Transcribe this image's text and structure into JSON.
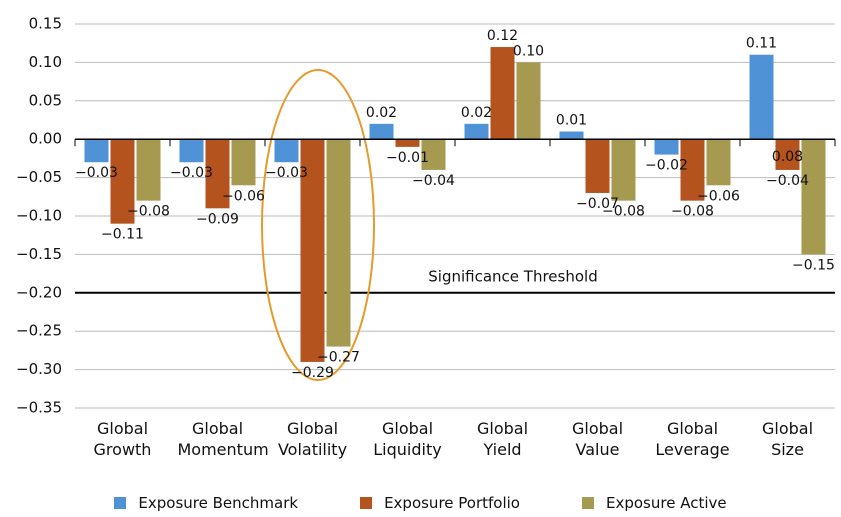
{
  "chart_data": {
    "type": "bar",
    "categories": [
      "Global Growth",
      "Global Momentum",
      "Global Volatility",
      "Global Liquidity",
      "Global Yield",
      "Global Value",
      "Global Leverage",
      "Global Size"
    ],
    "series": [
      {
        "name": "Exposure Benchmark",
        "color": "#4f93d6",
        "values": [
          -0.03,
          -0.03,
          -0.03,
          0.02,
          0.02,
          0.01,
          -0.02,
          0.11
        ],
        "value_labels": [
          "−0.03",
          "−0.03",
          "−0.03",
          "0.02",
          "0.02",
          "0.01",
          "−0.02",
          "0.11"
        ]
      },
      {
        "name": "Exposure Portfolio",
        "color": "#b5531f",
        "values": [
          -0.11,
          -0.09,
          -0.29,
          -0.01,
          0.12,
          -0.07,
          -0.08,
          -0.04
        ],
        "value_labels": [
          "−0.11",
          "−0.09",
          "−0.29",
          "−0.01",
          "0.12",
          "−0.07",
          "−0.08",
          "−0.04"
        ]
      },
      {
        "name": "Exposure Active",
        "color": "#a59a4f",
        "values": [
          -0.08,
          -0.06,
          -0.27,
          -0.04,
          0.1,
          -0.08,
          -0.06,
          -0.15
        ],
        "value_labels": [
          "−0.08",
          "−0.06",
          "−0.27",
          "−0.04",
          "0.10",
          "−0.08",
          "−0.06",
          "−0.15"
        ]
      }
    ],
    "ylim": [
      -0.35,
      0.15
    ],
    "yticks": [
      {
        "value": 0.15,
        "label": "0.15"
      },
      {
        "value": 0.1,
        "label": "0.10"
      },
      {
        "value": 0.05,
        "label": "0.05"
      },
      {
        "value": 0,
        "label": "0.00"
      },
      {
        "value": -0.05,
        "label": "−0.05"
      },
      {
        "value": -0.1,
        "label": "−0.10"
      },
      {
        "value": -0.15,
        "label": "−0.15"
      },
      {
        "value": -0.2,
        "label": "−0.20"
      },
      {
        "value": -0.25,
        "label": "−0.25"
      },
      {
        "value": -0.3,
        "label": "−0.30"
      },
      {
        "value": -0.35,
        "label": "−0.35"
      }
    ],
    "grid": true,
    "threshold": {
      "value": -0.2,
      "label": "Significance Threshold"
    },
    "annotations": [
      "0.08"
    ],
    "legend": "bottom"
  }
}
